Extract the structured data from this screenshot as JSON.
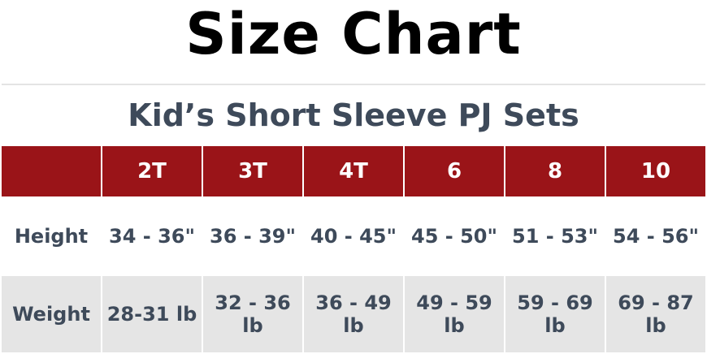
{
  "title": "Size Chart",
  "subtitle": "Kid’s Short Sleeve PJ Sets",
  "colors": {
    "header_bg": "#9a1418",
    "text": "#3e4a5a",
    "row_alt_bg": "#e5e5e5"
  },
  "table": {
    "corner": "",
    "sizes": [
      "2T",
      "3T",
      "4T",
      "6",
      "8",
      "10"
    ],
    "rows": [
      {
        "label": "Height",
        "values": [
          "34 - 36\"",
          "36 - 39\"",
          "40 - 45\"",
          "45 - 50\"",
          "51 - 53\"",
          "54 - 56\""
        ]
      },
      {
        "label": "Weight",
        "values": [
          "28-31 lb",
          "32 - 36 lb",
          "36 - 49 lb",
          "49 - 59 lb",
          "59 - 69 lb",
          "69 - 87 lb"
        ]
      }
    ]
  }
}
